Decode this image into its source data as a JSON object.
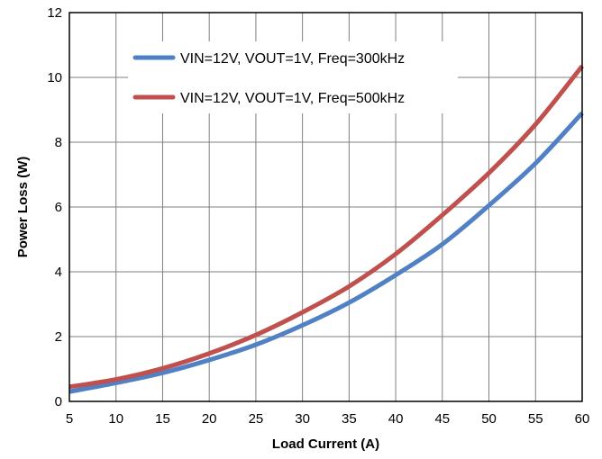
{
  "chart_data": {
    "type": "line",
    "xlabel": "Load Current (A)",
    "ylabel": "Power Loss (W)",
    "xlim": [
      5,
      60
    ],
    "ylim": [
      0,
      12
    ],
    "x_ticks": [
      5,
      10,
      15,
      20,
      25,
      30,
      35,
      40,
      45,
      50,
      55,
      60
    ],
    "y_ticks": [
      0,
      2,
      4,
      6,
      8,
      10,
      12
    ],
    "grid": true,
    "legend_position": "top-center",
    "series": [
      {
        "name": "VIN=12V, VOUT=1V, Freq=300kHz",
        "color": "#4f81c4",
        "x": [
          5,
          10,
          15,
          20,
          25,
          30,
          35,
          40,
          45,
          50,
          55,
          60
        ],
        "values": [
          0.3,
          0.57,
          0.88,
          1.28,
          1.75,
          2.35,
          3.05,
          3.9,
          4.85,
          6.05,
          7.35,
          8.9
        ]
      },
      {
        "name": "VIN=12V, VOUT=1V, Freq=500kHz",
        "color": "#c0504d",
        "x": [
          5,
          10,
          15,
          20,
          25,
          30,
          35,
          40,
          45,
          50,
          55,
          60
        ],
        "values": [
          0.45,
          0.68,
          1.02,
          1.48,
          2.05,
          2.75,
          3.55,
          4.55,
          5.75,
          7.05,
          8.55,
          10.35
        ]
      }
    ]
  }
}
